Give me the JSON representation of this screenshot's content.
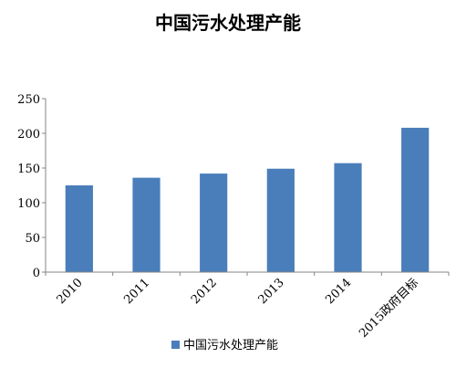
{
  "chart_data": {
    "type": "bar",
    "title": "中国污水处理产能",
    "categories": [
      "2010",
      "2011",
      "2012",
      "2013",
      "2014",
      "2015政府目标"
    ],
    "series": [
      {
        "name": "中国污水处理产能",
        "values": [
          125,
          136,
          142,
          149,
          157,
          208
        ]
      }
    ],
    "xlabel": "",
    "ylabel": "",
    "ylim": [
      0,
      250
    ],
    "yticks": [
      0,
      50,
      100,
      150,
      200,
      250
    ],
    "grid": false,
    "legend": "bottom",
    "colors": {
      "bar": "#4a7ebb",
      "axis": "#868686"
    }
  }
}
